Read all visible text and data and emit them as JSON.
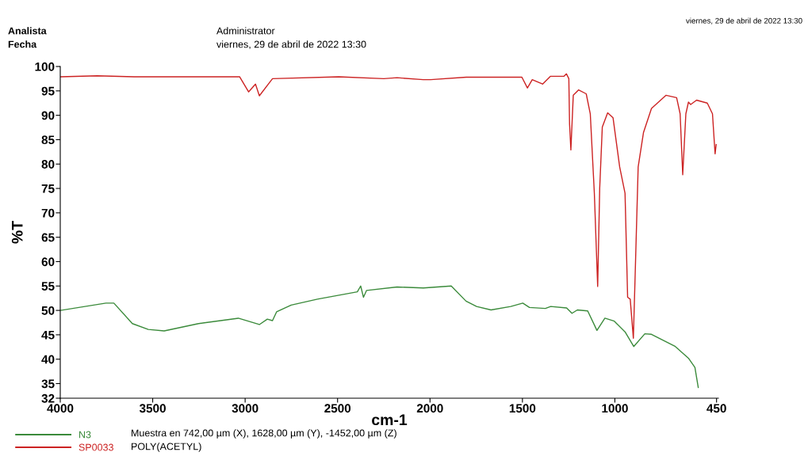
{
  "chart_data": {
    "type": "line",
    "xlabel": "cm-1",
    "ylabel": "%T",
    "xlim": [
      4000,
      440
    ],
    "xticks": [
      4000,
      3500,
      3000,
      2500,
      2000,
      1500,
      1000,
      450
    ],
    "ylim": [
      32,
      100
    ],
    "yticks": [
      32,
      35,
      40,
      45,
      50,
      55,
      60,
      65,
      70,
      75,
      80,
      85,
      90,
      95,
      100
    ],
    "grid": false,
    "legend": "bottom",
    "marker": "none",
    "line_style": "solid",
    "annotations": [
      "Analista",
      "Fecha",
      "Administrator",
      "viernes, 29 de abril de 2022 13:30",
      "viernes, 29 de abril de 2022 13:30",
      "Muestra en 742,00 µm (X), 1628,00 µm (Y), -1452,00 µm (Z)",
      "POLY(ACETYL)"
    ],
    "series": [
      {
        "name": "N3",
        "color": "#3a8a3a",
        "x": [
          4000,
          3753,
          3710,
          3610,
          3524,
          3438,
          3252,
          3037,
          2923,
          2880,
          2852,
          2830,
          2751,
          2609,
          2393,
          2375,
          2360,
          2343,
          2178,
          2036,
          1885,
          1805,
          1748,
          1670,
          1563,
          1498,
          1462,
          1376,
          1347,
          1261,
          1232,
          1203,
          1147,
          1097,
          1054,
          1003,
          945,
          898,
          838,
          802,
          673,
          602,
          567,
          549
        ],
        "values": [
          50.0,
          51.5,
          51.5,
          47.3,
          46.1,
          45.8,
          47.3,
          48.4,
          47.1,
          48.2,
          47.9,
          49.7,
          51.1,
          52.3,
          53.8,
          55.0,
          52.7,
          54.1,
          54.8,
          54.6,
          55.0,
          51.9,
          50.8,
          50.1,
          50.8,
          51.5,
          50.6,
          50.4,
          50.8,
          50.5,
          49.4,
          50.1,
          49.9,
          45.9,
          48.4,
          47.8,
          45.6,
          42.6,
          45.2,
          45.1,
          42.6,
          40.2,
          38.3,
          34.2
        ]
      },
      {
        "name": "SP0033",
        "color": "#cc2222",
        "x": [
          4000,
          3800,
          3600,
          3030,
          2981,
          2944,
          2923,
          2852,
          2493,
          2250,
          2178,
          2036,
          1997,
          1804,
          1619,
          1503,
          1473,
          1447,
          1391,
          1348,
          1275,
          1262,
          1249,
          1245,
          1238,
          1225,
          1196,
          1155,
          1133,
          1111,
          1093,
          1082,
          1068,
          1039,
          1010,
          974,
          945,
          931,
          917,
          900,
          888,
          874,
          845,
          802,
          723,
          666,
          647,
          633,
          616,
          602,
          590,
          558,
          500,
          472,
          458,
          452
        ],
        "values": [
          97.9,
          98.1,
          97.9,
          97.9,
          94.8,
          96.4,
          94.0,
          97.5,
          97.9,
          97.5,
          97.7,
          97.3,
          97.3,
          97.8,
          97.8,
          97.8,
          95.6,
          97.3,
          96.4,
          98.0,
          98.0,
          98.5,
          97.5,
          88.1,
          82.9,
          94.1,
          95.2,
          94.4,
          90.3,
          74.0,
          54.9,
          75.1,
          87.6,
          90.5,
          89.5,
          79.4,
          74.0,
          52.7,
          52.3,
          44.3,
          60.3,
          79.4,
          86.5,
          91.4,
          94.1,
          93.6,
          90.3,
          77.8,
          90.3,
          92.7,
          92.2,
          93.1,
          92.5,
          90.3,
          82.1,
          84
        ]
      }
    ]
  }
}
